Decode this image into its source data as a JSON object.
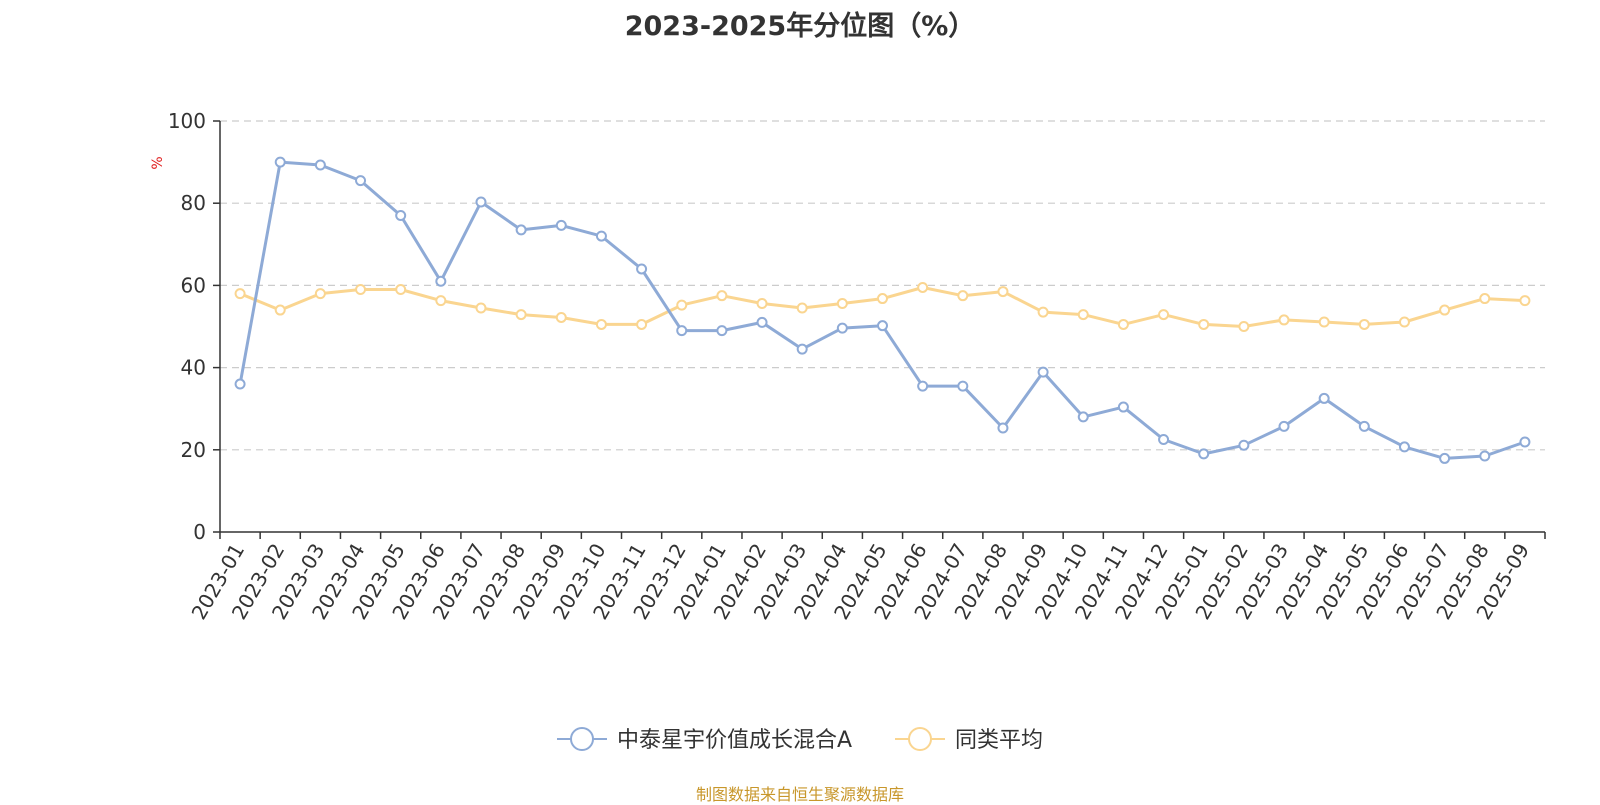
{
  "chart_data": {
    "type": "line",
    "title": "2023-2025年分位图（%）",
    "ylabel": "%",
    "ylim": [
      0,
      100
    ],
    "yticks": [
      0,
      20,
      40,
      60,
      80,
      100
    ],
    "grid": true,
    "legend_position": "bottom",
    "categories": [
      "2023-01",
      "2023-02",
      "2023-03",
      "2023-04",
      "2023-05",
      "2023-06",
      "2023-07",
      "2023-08",
      "2023-09",
      "2023-10",
      "2023-11",
      "2023-12",
      "2024-01",
      "2024-02",
      "2024-03",
      "2024-04",
      "2024-05",
      "2024-06",
      "2024-07",
      "2024-08",
      "2024-09",
      "2024-10",
      "2024-11",
      "2024-12",
      "2025-01",
      "2025-02",
      "2025-03",
      "2025-04",
      "2025-05",
      "2025-06",
      "2025-07",
      "2025-08",
      "2025-09"
    ],
    "series": [
      {
        "name": "中泰星宇价值成长混合A",
        "color": "#8eaad6",
        "values": [
          36,
          90,
          89.3,
          85.5,
          77,
          61,
          80.3,
          73.5,
          74.6,
          72,
          64,
          49,
          49,
          51,
          44.5,
          49.6,
          50.2,
          35.5,
          35.5,
          25.3,
          38.9,
          28,
          30.4,
          22.5,
          19,
          21.1,
          25.7,
          32.5,
          25.7,
          20.7,
          17.9,
          18.5,
          21.9
        ]
      },
      {
        "name": "同类平均",
        "color": "#fad590",
        "values": [
          58,
          54,
          58,
          59,
          59,
          56.3,
          54.5,
          52.9,
          52.2,
          50.5,
          50.5,
          55.2,
          57.5,
          55.6,
          54.5,
          55.6,
          56.8,
          59.5,
          57.5,
          58.5,
          53.5,
          52.9,
          50.5,
          52.9,
          50.5,
          50,
          51.6,
          51.1,
          50.5,
          51.1,
          54,
          56.8,
          56.3
        ]
      }
    ]
  },
  "source_note": "制图数据来自恒生聚源数据库"
}
